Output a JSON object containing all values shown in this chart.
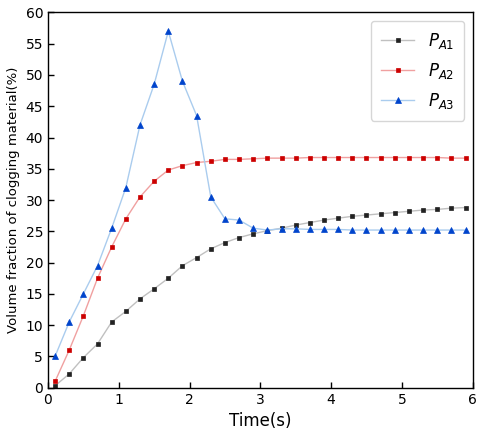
{
  "title": "",
  "xlabel": "Time(s)",
  "ylabel": "Volume fraction of clogging material(%)",
  "xlim": [
    0,
    6
  ],
  "ylim": [
    0,
    60
  ],
  "xticks": [
    0,
    1,
    2,
    3,
    4,
    5,
    6
  ],
  "yticks": [
    0,
    5,
    10,
    15,
    20,
    25,
    30,
    35,
    40,
    45,
    50,
    55,
    60
  ],
  "series": [
    {
      "label": "P_{A1}",
      "line_color": "#c0c0c0",
      "marker_color": "#222222",
      "marker": "s",
      "markersize": 3.5,
      "x": [
        0.1,
        0.3,
        0.5,
        0.7,
        0.9,
        1.1,
        1.3,
        1.5,
        1.7,
        1.9,
        2.1,
        2.3,
        2.5,
        2.7,
        2.9,
        3.1,
        3.3,
        3.5,
        3.7,
        3.9,
        4.1,
        4.3,
        4.5,
        4.7,
        4.9,
        5.1,
        5.3,
        5.5,
        5.7,
        5.9
      ],
      "y": [
        0.3,
        2.2,
        4.8,
        7.0,
        10.5,
        12.2,
        14.2,
        15.8,
        17.5,
        19.5,
        20.8,
        22.2,
        23.2,
        24.0,
        24.6,
        25.1,
        25.5,
        26.0,
        26.4,
        26.8,
        27.1,
        27.4,
        27.6,
        27.8,
        28.0,
        28.2,
        28.4,
        28.5,
        28.7,
        28.8
      ]
    },
    {
      "label": "P_{A2}",
      "line_color": "#f0a0a0",
      "marker_color": "#cc0000",
      "marker": "s",
      "markersize": 3.5,
      "x": [
        0.1,
        0.3,
        0.5,
        0.7,
        0.9,
        1.1,
        1.3,
        1.5,
        1.7,
        1.9,
        2.1,
        2.3,
        2.5,
        2.7,
        2.9,
        3.1,
        3.3,
        3.5,
        3.7,
        3.9,
        4.1,
        4.3,
        4.5,
        4.7,
        4.9,
        5.1,
        5.3,
        5.5,
        5.7,
        5.9
      ],
      "y": [
        1.0,
        6.0,
        11.5,
        17.5,
        22.5,
        27.0,
        30.5,
        33.0,
        34.8,
        35.5,
        36.0,
        36.2,
        36.5,
        36.5,
        36.6,
        36.7,
        36.7,
        36.7,
        36.8,
        36.8,
        36.8,
        36.8,
        36.8,
        36.8,
        36.8,
        36.8,
        36.8,
        36.8,
        36.7,
        36.7
      ]
    },
    {
      "label": "P_{A3}",
      "line_color": "#aaccee",
      "marker_color": "#0044cc",
      "marker": "^",
      "markersize": 4,
      "x": [
        0.1,
        0.3,
        0.5,
        0.7,
        0.9,
        1.1,
        1.3,
        1.5,
        1.7,
        1.9,
        2.1,
        2.3,
        2.5,
        2.7,
        2.9,
        3.1,
        3.3,
        3.5,
        3.7,
        3.9,
        4.1,
        4.3,
        4.5,
        4.7,
        4.9,
        5.1,
        5.3,
        5.5,
        5.7,
        5.9
      ],
      "y": [
        5.0,
        10.5,
        15.0,
        19.5,
        25.5,
        32.0,
        42.0,
        48.5,
        57.0,
        49.0,
        43.5,
        30.5,
        27.0,
        26.8,
        25.5,
        25.2,
        25.4,
        25.4,
        25.3,
        25.3,
        25.3,
        25.2,
        25.2,
        25.2,
        25.2,
        25.2,
        25.2,
        25.2,
        25.2,
        25.2
      ]
    }
  ],
  "legend": {
    "loc": "upper right",
    "fontsize": 12
  },
  "background_color": "#ffffff"
}
